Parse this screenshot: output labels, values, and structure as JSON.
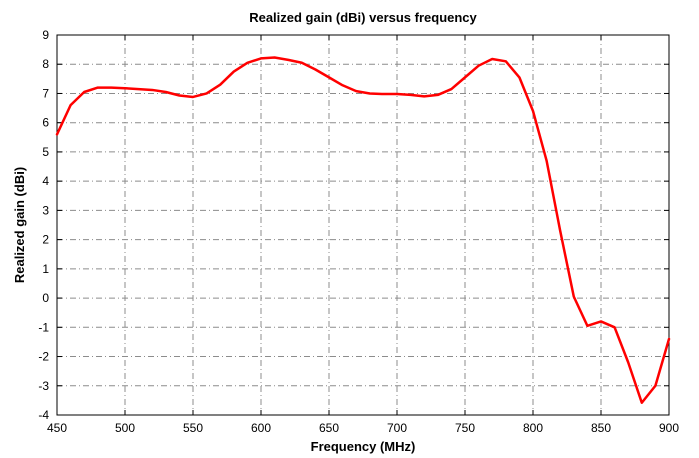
{
  "chart_data": {
    "type": "line",
    "title": "Realized gain (dBi) versus frequency",
    "xlabel": "Frequency (MHz)",
    "ylabel": "Realized gain (dBi)",
    "xlim": [
      450,
      900
    ],
    "ylim": [
      -4,
      9
    ],
    "xticks": [
      450,
      500,
      550,
      600,
      650,
      700,
      750,
      800,
      850,
      900
    ],
    "yticks": [
      -4,
      -3,
      -2,
      -1,
      0,
      1,
      2,
      3,
      4,
      5,
      6,
      7,
      8,
      9
    ],
    "xtick_labels": [
      "450",
      "500",
      "550",
      "600",
      "650",
      "700",
      "750",
      "800",
      "850",
      "900"
    ],
    "ytick_labels": [
      "-4",
      "-3",
      "-2",
      "-1",
      "0",
      "1",
      "2",
      "3",
      "4",
      "5",
      "6",
      "7",
      "8",
      "9"
    ],
    "grid": true,
    "series": [
      {
        "color": "#ff0000",
        "x": [
          450,
          460,
          470,
          480,
          490,
          500,
          510,
          520,
          530,
          540,
          550,
          560,
          570,
          580,
          590,
          600,
          610,
          620,
          630,
          640,
          650,
          660,
          670,
          680,
          690,
          700,
          710,
          720,
          730,
          740,
          750,
          760,
          770,
          780,
          790,
          800,
          810,
          820,
          830,
          840,
          850,
          860,
          870,
          880,
          890,
          900
        ],
        "y": [
          5.6,
          6.6,
          7.05,
          7.2,
          7.2,
          7.18,
          7.15,
          7.12,
          7.05,
          6.93,
          6.88,
          7.0,
          7.3,
          7.75,
          8.05,
          8.2,
          8.23,
          8.15,
          8.05,
          7.82,
          7.55,
          7.28,
          7.08,
          7.0,
          6.98,
          6.98,
          6.95,
          6.9,
          6.95,
          7.15,
          7.55,
          7.95,
          8.18,
          8.1,
          7.55,
          6.4,
          4.7,
          2.3,
          0.05,
          -0.95,
          -0.8,
          -1.0,
          -2.2,
          -3.58,
          -3.0,
          -1.4
        ]
      }
    ]
  }
}
